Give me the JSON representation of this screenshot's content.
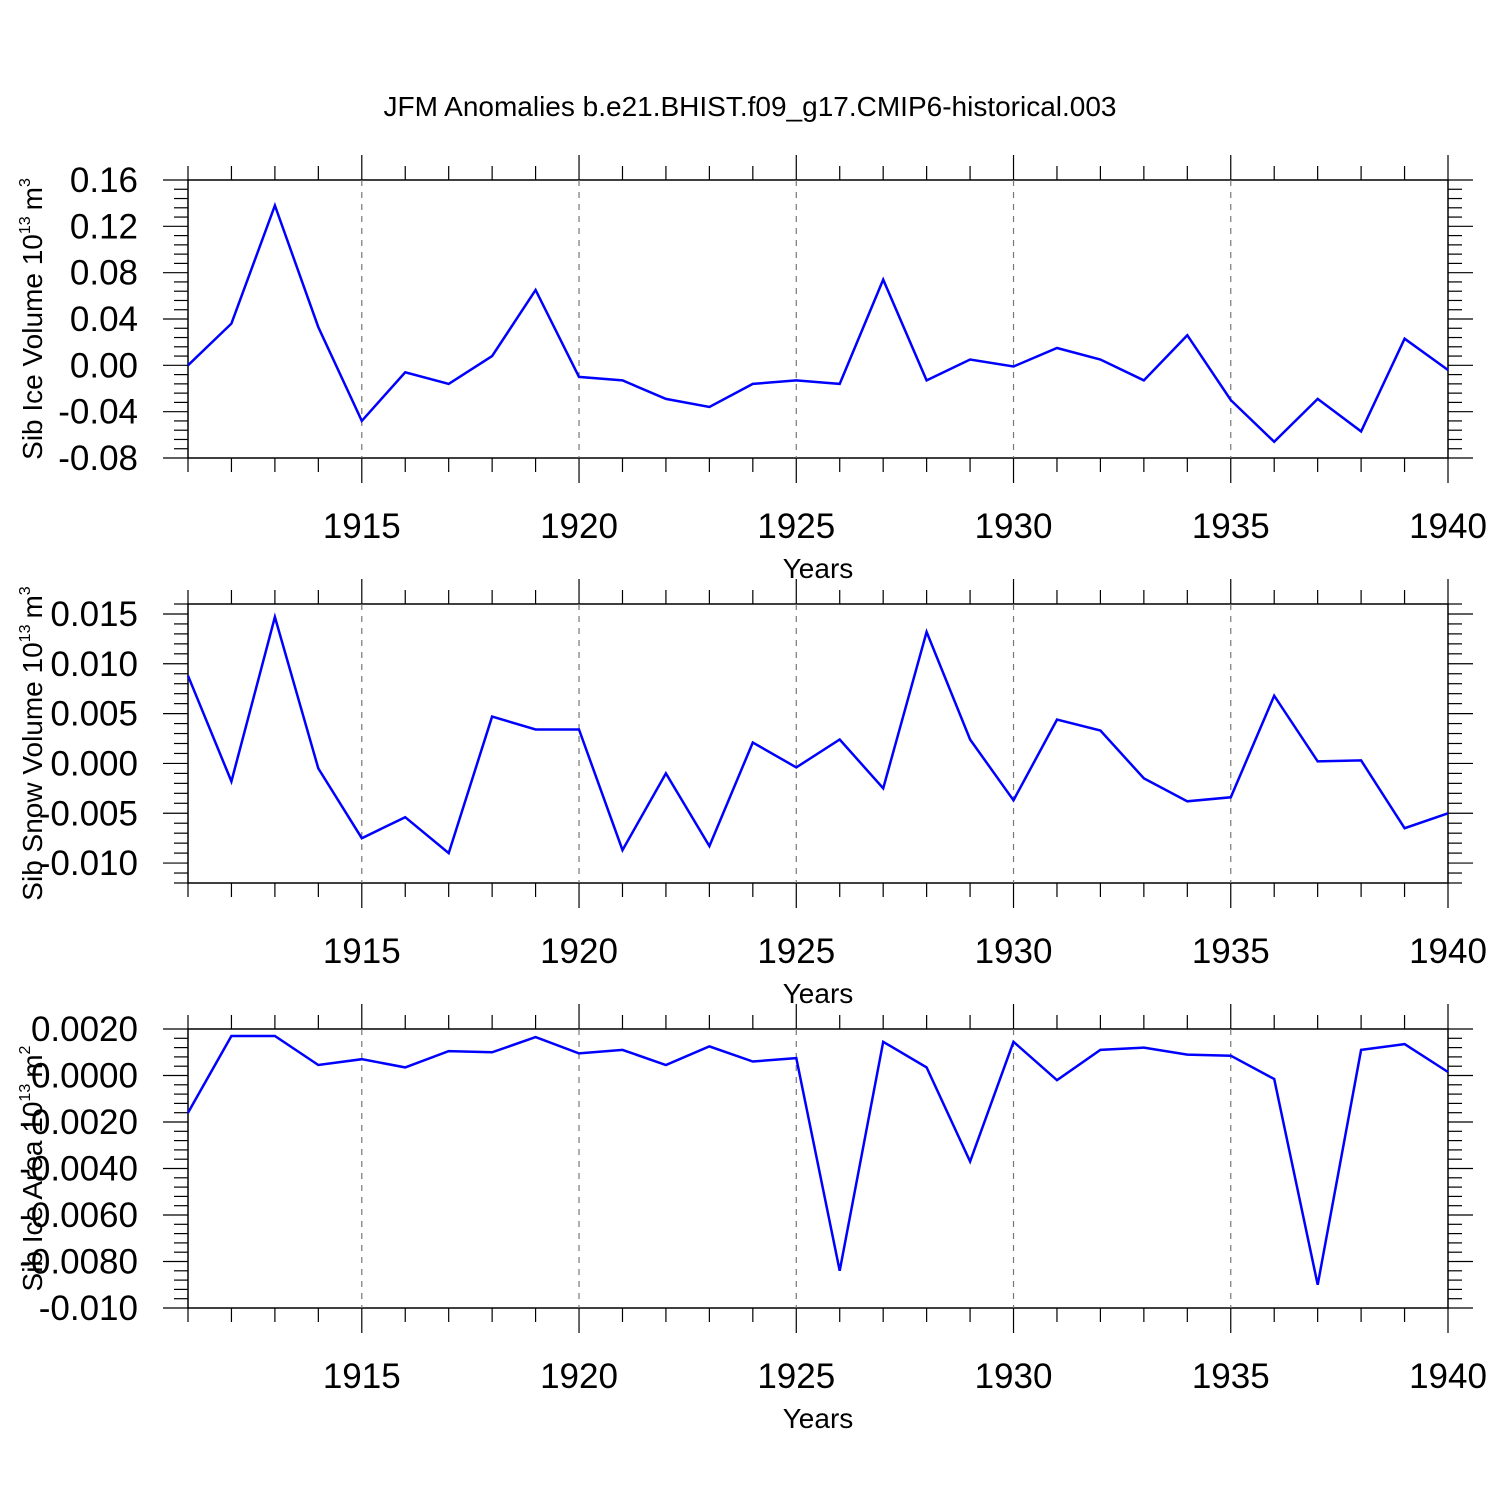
{
  "figure_title": "JFM Anomalies b.e21.BHIST.f09_g17.CMIP6-historical.003",
  "line_color": "#0000ff",
  "chart_data": [
    {
      "type": "line",
      "ylabel": "Sib Ice Volume 10",
      "ylabel_exp": "13",
      "ylabel_unit": "m",
      "ylabel_unit_exp": "3",
      "xlabel": "Years",
      "xlim": [
        1911,
        1940
      ],
      "ylim": [
        -0.08,
        0.16
      ],
      "yticks": [
        -0.08,
        -0.04,
        0.0,
        0.04,
        0.08,
        0.12,
        0.16
      ],
      "ytick_labels": [
        "-0.08",
        "-0.04",
        "0.00",
        "0.04",
        "0.08",
        "0.12",
        "0.16"
      ],
      "xticks": [
        1915,
        1920,
        1925,
        1930,
        1935,
        1940
      ],
      "xtick_labels": [
        "1915",
        "1920",
        "1925",
        "1930",
        "1935",
        "1940"
      ],
      "x": [
        1911,
        1912,
        1913,
        1914,
        1915,
        1916,
        1917,
        1918,
        1919,
        1920,
        1921,
        1922,
        1923,
        1924,
        1925,
        1926,
        1927,
        1928,
        1929,
        1930,
        1931,
        1932,
        1933,
        1934,
        1935,
        1936,
        1937,
        1938,
        1939,
        1940
      ],
      "values": [
        0.0,
        0.036,
        0.138,
        0.033,
        -0.048,
        -0.006,
        -0.016,
        0.008,
        0.065,
        -0.01,
        -0.013,
        -0.029,
        -0.036,
        -0.016,
        -0.013,
        -0.016,
        0.074,
        -0.013,
        0.005,
        -0.001,
        0.015,
        0.005,
        -0.013,
        0.026,
        -0.03,
        -0.066,
        -0.029,
        -0.057,
        0.023,
        -0.004
      ]
    },
    {
      "type": "line",
      "ylabel": "Sib Snow Volume 10",
      "ylabel_exp": "13",
      "ylabel_unit": "m",
      "ylabel_unit_exp": "3",
      "xlabel": "Years",
      "xlim": [
        1911,
        1940
      ],
      "ylim": [
        -0.012,
        0.016
      ],
      "yticks": [
        -0.01,
        -0.005,
        0.0,
        0.005,
        0.01,
        0.015
      ],
      "ytick_labels": [
        "-0.010",
        "-0.005",
        "0.000",
        "0.005",
        "0.010",
        "0.015"
      ],
      "xticks": [
        1915,
        1920,
        1925,
        1930,
        1935,
        1940
      ],
      "xtick_labels": [
        "1915",
        "1920",
        "1925",
        "1930",
        "1935",
        "1940"
      ],
      "x": [
        1911,
        1912,
        1913,
        1914,
        1915,
        1916,
        1917,
        1918,
        1919,
        1920,
        1921,
        1922,
        1923,
        1924,
        1925,
        1926,
        1927,
        1928,
        1929,
        1930,
        1931,
        1932,
        1933,
        1934,
        1935,
        1936,
        1937,
        1938,
        1939,
        1940
      ],
      "values": [
        0.0088,
        -0.0018,
        0.0147,
        -0.0005,
        -0.0075,
        -0.0054,
        -0.009,
        0.0047,
        0.0034,
        0.0034,
        -0.0087,
        -0.001,
        -0.0083,
        0.0021,
        -0.0004,
        0.0024,
        -0.0025,
        0.0132,
        0.0024,
        -0.0037,
        0.0044,
        0.0033,
        -0.0015,
        -0.0038,
        -0.0034,
        0.0068,
        0.0002,
        0.0003,
        -0.0065,
        -0.005
      ]
    },
    {
      "type": "line",
      "ylabel": "Sib Ice Area 10",
      "ylabel_exp": "13",
      "ylabel_unit": "m",
      "ylabel_unit_exp": "2",
      "xlabel": "Years",
      "xlim": [
        1911,
        1940
      ],
      "ylim": [
        -0.01,
        0.002
      ],
      "yticks": [
        -0.01,
        -0.008,
        -0.006,
        -0.004,
        -0.002,
        0.0,
        0.002
      ],
      "ytick_labels": [
        "-0.010",
        "-0.0080",
        "-0.0060",
        "-0.0040",
        "-0.0020",
        "0.0000",
        "0.0020"
      ],
      "xticks": [
        1915,
        1920,
        1925,
        1930,
        1935,
        1940
      ],
      "xtick_labels": [
        "1915",
        "1920",
        "1925",
        "1930",
        "1935",
        "1940"
      ],
      "x": [
        1911,
        1912,
        1913,
        1914,
        1915,
        1916,
        1917,
        1918,
        1919,
        1920,
        1921,
        1922,
        1923,
        1924,
        1925,
        1926,
        1927,
        1928,
        1929,
        1930,
        1931,
        1932,
        1933,
        1934,
        1935,
        1936,
        1937,
        1938,
        1939,
        1940
      ],
      "values": [
        -0.0016,
        0.0017,
        0.0017,
        0.00045,
        0.0007,
        0.00035,
        0.00105,
        0.001,
        0.00165,
        0.00095,
        0.0011,
        0.00045,
        0.00125,
        0.0006,
        0.00075,
        -0.0084,
        0.00145,
        0.00035,
        -0.0037,
        0.00145,
        -0.0002,
        0.0011,
        0.0012,
        0.0009,
        0.00085,
        -0.00015,
        -0.009,
        0.0011,
        0.00135,
        0.00015
      ]
    }
  ]
}
